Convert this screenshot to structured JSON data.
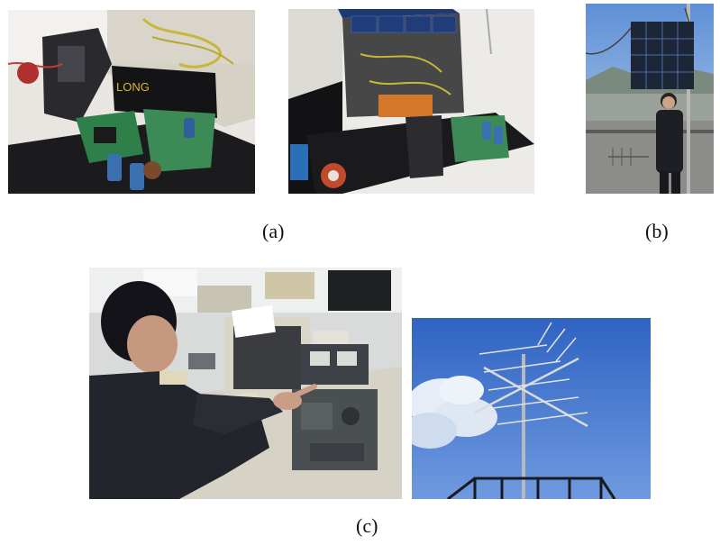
{
  "captions": {
    "a": "(a)",
    "b": "(b)",
    "c": "(c)"
  },
  "photos": {
    "a_left": {
      "icon": "electronics-board-photo"
    },
    "a_right": {
      "icon": "solar-cube-satellite-photo"
    },
    "b": {
      "icon": "student-with-cube-on-roof-photo"
    },
    "c_left": {
      "icon": "student-at-radio-station-photo"
    },
    "c_right": {
      "icon": "yagi-antenna-sky-photo"
    }
  },
  "device_labels": {
    "battery": "LONG"
  }
}
